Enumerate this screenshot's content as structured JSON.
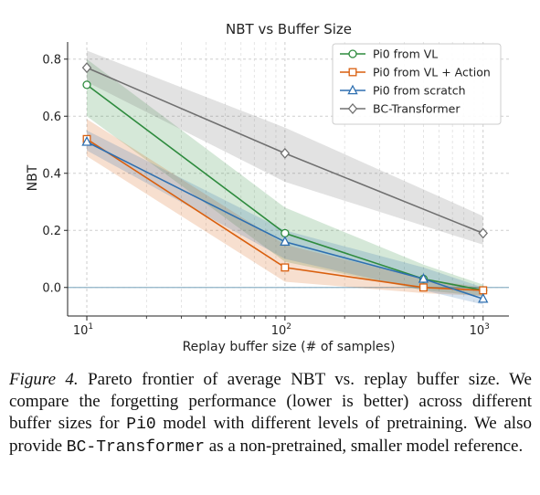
{
  "chart_data": {
    "type": "line",
    "title": "NBT vs Buffer Size",
    "xlabel": "Replay buffer size (# of samples)",
    "ylabel": "NBT",
    "xscale": "log",
    "xlim": [
      8,
      1350
    ],
    "ylim": [
      -0.1,
      0.86
    ],
    "xticks": [
      10,
      100,
      1000
    ],
    "xtick_labels": [
      {
        "base": "10",
        "exp": "1"
      },
      {
        "base": "10",
        "exp": "2"
      },
      {
        "base": "10",
        "exp": "3"
      }
    ],
    "yticks": [
      0.0,
      0.2,
      0.4,
      0.6,
      0.8
    ],
    "ytick_labels": [
      "0.0",
      "0.2",
      "0.4",
      "0.6",
      "0.8"
    ],
    "grid": true,
    "legend_position": "top-right",
    "series": [
      {
        "name": "Pi0 from VL",
        "color": "#2e8b3e",
        "marker": "circle",
        "x": [
          10,
          100,
          500,
          1000
        ],
        "y": [
          0.71,
          0.19,
          0.03,
          -0.01
        ],
        "lower": [
          0.6,
          0.09,
          -0.01,
          -0.03
        ],
        "upper": [
          0.8,
          0.28,
          0.08,
          0.01
        ]
      },
      {
        "name": "Pi0 from VL + Action",
        "color": "#d95f0e",
        "marker": "square",
        "x": [
          10,
          100,
          500,
          1000
        ],
        "y": [
          0.52,
          0.07,
          0.0,
          -0.01
        ],
        "lower": [
          0.46,
          0.02,
          -0.02,
          -0.03
        ],
        "upper": [
          0.59,
          0.15,
          0.03,
          0.0
        ]
      },
      {
        "name": "Pi0 from scratch",
        "color": "#2e6fb0",
        "marker": "triangle",
        "x": [
          10,
          100,
          500,
          1000
        ],
        "y": [
          0.51,
          0.16,
          0.03,
          -0.04
        ],
        "lower": [
          0.48,
          0.1,
          -0.01,
          -0.06
        ],
        "upper": [
          0.55,
          0.2,
          0.07,
          0.0
        ]
      },
      {
        "name": "BC-Transformer",
        "color": "#707070",
        "marker": "diamond",
        "x": [
          10,
          100,
          1000
        ],
        "y": [
          0.77,
          0.47,
          0.19
        ],
        "lower": [
          0.72,
          0.37,
          0.15
        ],
        "upper": [
          0.83,
          0.56,
          0.25
        ]
      }
    ]
  },
  "caption": {
    "label": "Figure 4.",
    "parts": [
      {
        "text": " Pareto frontier of average NBT vs. replay buffer size. We compare the forgetting performance (lower is better) across different buffer sizes for ",
        "mono": false
      },
      {
        "text": "Pi0",
        "mono": true
      },
      {
        "text": " model with different levels of pretraining. We also provide ",
        "mono": false
      },
      {
        "text": "BC-Transformer",
        "mono": true
      },
      {
        "text": " as a non-pretrained, smaller model reference.",
        "mono": false
      }
    ]
  }
}
